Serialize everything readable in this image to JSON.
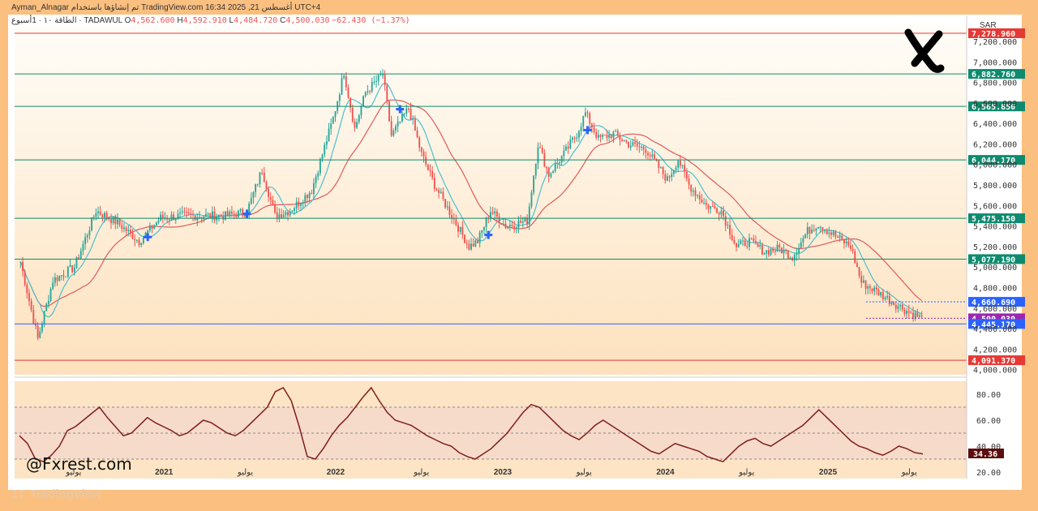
{
  "header": {
    "author": "Ayman_Alnagar",
    "platform_note": "تم إنشاؤها باستخدام TradingView.com",
    "datetime": "16:34 2025 ,21 أغسطس UTC+4",
    "symbol_line": "الطاقة ١٠ · 1أسبوع · TADAWUL",
    "o_label": "O",
    "o_value": "4,562.600",
    "h_label": "H",
    "h_value": "4,592.910",
    "l_label": "L",
    "l_value": "4,484.720",
    "c_label": "C",
    "c_value": "4,500.030",
    "change": "−62.430 (−1.37%)"
  },
  "brand": {
    "watermark": "@Fxrest.com",
    "tv_logo": "TradingView",
    "logo_icon": "x-brand-icon"
  },
  "colors": {
    "bull": "#26a69a",
    "bear": "#ef5350",
    "ma_fast": "#4dbfd0",
    "ma_slow": "#e05a5a",
    "rsi": "#7f1d1d",
    "level_red": "#e53935",
    "level_green": "#0f8a6e",
    "level_blue": "#2962ff",
    "current": "#9c27b0"
  },
  "chart_data": [
    {
      "type": "candlestick",
      "title": "TADAWUL Energy Index – Weekly",
      "currency": "SAR",
      "ylim": [
        3950,
        7350
      ],
      "yticks": [
        "7,200.000",
        "7,000.000",
        "6,800.000",
        "6,600.000",
        "6,400.000",
        "6,200.000",
        "6,000.000",
        "5,800.000",
        "5,600.000",
        "5,400.000",
        "5,200.000",
        "5,000.000",
        "4,800.000",
        "4,600.000",
        "4,400.000",
        "4,200.000",
        "4,000.000"
      ],
      "ytick_values": [
        7200,
        7000,
        6800,
        6600,
        6400,
        6200,
        6000,
        5800,
        5600,
        5400,
        5200,
        5000,
        4800,
        4600,
        4400,
        4200,
        4000
      ],
      "xlabels": [
        {
          "label": "يوليو",
          "t": 0.06
        },
        {
          "label": "2021",
          "t": 0.16
        },
        {
          "label": "يوليو",
          "t": 0.25
        },
        {
          "label": "2022",
          "t": 0.35
        },
        {
          "label": "يوليو",
          "t": 0.445
        },
        {
          "label": "2023",
          "t": 0.535
        },
        {
          "label": "يوليو",
          "t": 0.625
        },
        {
          "label": "2024",
          "t": 0.715
        },
        {
          "label": "يوليو",
          "t": 0.805
        },
        {
          "label": "2025",
          "t": 0.895
        },
        {
          "label": "يوليو",
          "t": 0.985
        }
      ],
      "anchors": [
        [
          0,
          5050
        ],
        [
          8,
          4300
        ],
        [
          15,
          4870
        ],
        [
          25,
          5000
        ],
        [
          35,
          5550
        ],
        [
          45,
          5430
        ],
        [
          55,
          5250
        ],
        [
          65,
          5480
        ],
        [
          75,
          5500
        ],
        [
          85,
          5500
        ],
        [
          95,
          5500
        ],
        [
          105,
          5540
        ],
        [
          112,
          5950
        ],
        [
          118,
          5500
        ],
        [
          125,
          5550
        ],
        [
          135,
          5750
        ],
        [
          145,
          6450
        ],
        [
          150,
          6900
        ],
        [
          155,
          6350
        ],
        [
          160,
          6700
        ],
        [
          168,
          6880
        ],
        [
          172,
          6280
        ],
        [
          180,
          6550
        ],
        [
          186,
          6100
        ],
        [
          192,
          5800
        ],
        [
          200,
          5500
        ],
        [
          208,
          5200
        ],
        [
          212,
          5250
        ],
        [
          218,
          5550
        ],
        [
          225,
          5400
        ],
        [
          235,
          5450
        ],
        [
          240,
          6200
        ],
        [
          245,
          5900
        ],
        [
          252,
          6100
        ],
        [
          258,
          6300
        ],
        [
          262,
          6500
        ],
        [
          268,
          6250
        ],
        [
          275,
          6300
        ],
        [
          282,
          6200
        ],
        [
          290,
          6150
        ],
        [
          295,
          6000
        ],
        [
          300,
          5850
        ],
        [
          305,
          6050
        ],
        [
          310,
          5800
        ],
        [
          318,
          5600
        ],
        [
          325,
          5550
        ],
        [
          332,
          5200
        ],
        [
          338,
          5250
        ],
        [
          345,
          5150
        ],
        [
          352,
          5180
        ],
        [
          358,
          5100
        ],
        [
          365,
          5350
        ],
        [
          370,
          5420
        ],
        [
          378,
          5300
        ],
        [
          385,
          5200
        ],
        [
          390,
          4850
        ],
        [
          398,
          4750
        ],
        [
          405,
          4650
        ],
        [
          412,
          4560
        ],
        [
          418,
          4500
        ]
      ],
      "levels": [
        {
          "value": "7,278.960",
          "v": 7278.96,
          "color": "#e53935"
        },
        {
          "value": "6,882.760",
          "v": 6882.76,
          "color": "#0f8a6e"
        },
        {
          "value": "6,565.850",
          "v": 6565.85,
          "color": "#0f8a6e"
        },
        {
          "value": "6,044.170",
          "v": 6044.17,
          "color": "#0f8a6e"
        },
        {
          "value": "5,475.150",
          "v": 5475.15,
          "color": "#0f8a6e"
        },
        {
          "value": "5,077.190",
          "v": 5077.19,
          "color": "#0f8a6e"
        },
        {
          "value": "4,660.690",
          "v": 4660.69,
          "color": "#2962ff"
        },
        {
          "value": "4,500.030",
          "v": 4500.03,
          "color": "#9c27b0"
        },
        {
          "value": "4,445.170",
          "v": 4445.17,
          "color": "#2962ff"
        },
        {
          "value": "4,091.370",
          "v": 4091.37,
          "color": "#e53935"
        }
      ],
      "cross_markers": [
        0.14,
        0.25,
        0.42,
        0.52,
        0.63
      ]
    },
    {
      "type": "line",
      "title": "RSI",
      "ylim": [
        15,
        90
      ],
      "yticks": [
        "80.00",
        "60.00",
        "40.00",
        "20.00"
      ],
      "ytick_values": [
        80,
        60,
        40,
        20
      ],
      "bands": [
        30,
        50,
        70
      ],
      "current_value": "34.36",
      "current_v": 34.36,
      "values": [
        48,
        42,
        30,
        28,
        33,
        40,
        52,
        55,
        60,
        65,
        70,
        62,
        55,
        48,
        50,
        56,
        62,
        58,
        55,
        52,
        48,
        50,
        55,
        60,
        58,
        54,
        50,
        48,
        52,
        58,
        64,
        70,
        82,
        85,
        75,
        55,
        32,
        30,
        38,
        48,
        56,
        62,
        70,
        78,
        85,
        75,
        66,
        60,
        58,
        56,
        52,
        48,
        45,
        42,
        40,
        35,
        32,
        30,
        34,
        38,
        44,
        50,
        58,
        66,
        72,
        70,
        64,
        58,
        52,
        48,
        45,
        50,
        56,
        60,
        56,
        52,
        48,
        44,
        40,
        36,
        34,
        38,
        42,
        40,
        38,
        36,
        32,
        30,
        28,
        34,
        40,
        44,
        46,
        42,
        40,
        44,
        48,
        52,
        56,
        62,
        68,
        62,
        56,
        50,
        44,
        40,
        38,
        35,
        33,
        36,
        40,
        38,
        35,
        34
      ]
    }
  ]
}
